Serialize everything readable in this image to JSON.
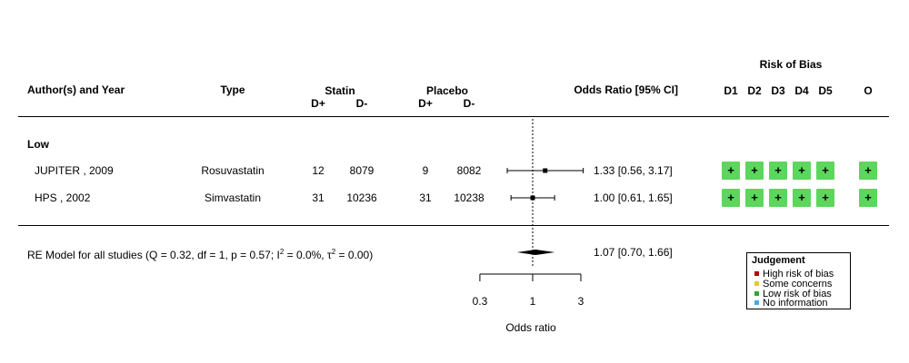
{
  "chart_data": {
    "type": "forest",
    "header": {
      "author": "Author(s) and Year",
      "type": "Type",
      "statin": "Statin",
      "placebo": "Placebo",
      "dplus": "D+",
      "dminus": "D-",
      "or": "Odds Ratio [95% CI]",
      "rob_title": "Risk of Bias",
      "domains": [
        "D1",
        "D2",
        "D3",
        "D4",
        "D5",
        "O"
      ]
    },
    "group_label": "Low",
    "studies": [
      {
        "author": "JUPITER , 2009",
        "drug": "Rosuvastatin",
        "statin_dplus": "12",
        "statin_dminus": "8079",
        "placebo_dplus": "9",
        "placebo_dminus": "8082",
        "or_text": "1.33 [0.56, 3.17]",
        "or": 1.33,
        "ci_lower": 0.56,
        "ci_upper": 3.17,
        "rob": [
          "low",
          "low",
          "low",
          "low",
          "low",
          "low"
        ]
      },
      {
        "author": "HPS , 2002",
        "drug": "Simvastatin",
        "statin_dplus": "31",
        "statin_dminus": "10236",
        "placebo_dplus": "31",
        "placebo_dminus": "10238",
        "or_text": "1.00 [0.61, 1.65]",
        "or": 1.0,
        "ci_lower": 0.61,
        "ci_upper": 1.65,
        "rob": [
          "low",
          "low",
          "low",
          "low",
          "low",
          "low"
        ]
      }
    ],
    "summary": {
      "label_pre": "RE Model for all studies (Q = 0.32, df = 1, p = 0.57; I",
      "label_sup1": "2",
      "label_mid": " = 0.0%, τ",
      "label_sup2": "2",
      "label_post": " = 0.00)",
      "or_text": "1.07 [0.70, 1.66]",
      "or": 1.07,
      "ci_lower": 0.7,
      "ci_upper": 1.66
    },
    "x_axis": {
      "label": "Odds ratio",
      "scale": "log",
      "ticks": [
        "0.3",
        "1",
        "3"
      ],
      "tick_values": [
        0.3,
        1,
        3
      ],
      "reference_line": 1
    },
    "rob_symbol": "+",
    "legend": {
      "title": "Judgement",
      "items": [
        {
          "label": "High risk of bias",
          "color": "#c00000"
        },
        {
          "label": "Some concerns",
          "color": "#e8c930"
        },
        {
          "label": "Low risk of bias",
          "color": "#2ea92e"
        },
        {
          "label": "No information",
          "color": "#4aa8e0"
        }
      ]
    },
    "colors": {
      "low": "#5cd65c"
    }
  }
}
